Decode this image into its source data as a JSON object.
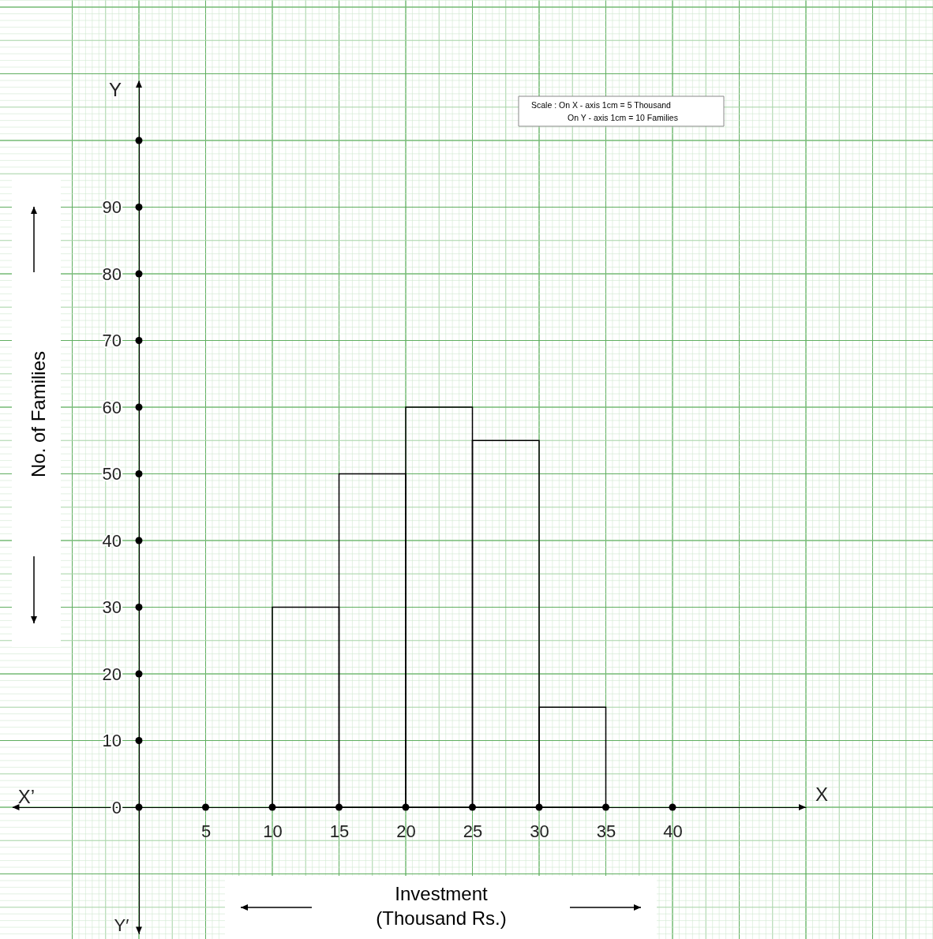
{
  "chart_data": {
    "type": "histogram",
    "xlabel": "Investment (Thousand Rs.)",
    "ylabel": "No. of Families",
    "bins": [
      10,
      15,
      20,
      25,
      30,
      35
    ],
    "values": [
      30,
      50,
      60,
      55,
      15
    ],
    "color": "#000000",
    "xlim": [
      -9.5,
      50
    ],
    "ylim": [
      -19,
      109
    ],
    "xticks": [
      5,
      10,
      15,
      20,
      25,
      30,
      35,
      40
    ],
    "yticks": [
      0,
      10,
      20,
      30,
      40,
      50,
      60,
      70,
      80,
      90,
      {
        "value": 100,
        "label": null
      }
    ],
    "grid": true,
    "annotations": [
      "Scale : On X - axis 1cm = 5 Thousand",
      "On Y - axis 1cm = 10 Families",
      "X’",
      "X",
      "Y",
      "Y′"
    ]
  }
}
